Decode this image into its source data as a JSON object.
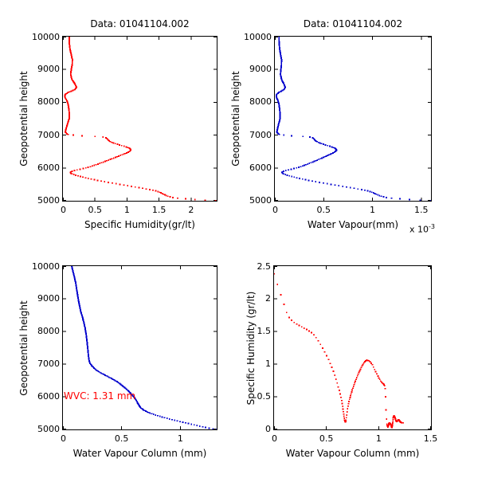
{
  "figure": {
    "background": "#ffffff",
    "axis_color": "#000000",
    "height_param_range": [
      5000,
      10000
    ],
    "height_sample_step_m": 20
  },
  "chart_data": [
    {
      "type": "scatter",
      "position": "top-left",
      "title": "Data: 01041104.002",
      "xlabel": "Specific Humidity(gr/lt)",
      "ylabel": "Geopotential height",
      "xlim": [
        0,
        2.4
      ],
      "ylim": [
        5000,
        10000
      ],
      "xticks": [
        {
          "v": 0,
          "l": "0"
        },
        {
          "v": 0.5,
          "l": "0.5"
        },
        {
          "v": 1,
          "l": "1"
        },
        {
          "v": 1.5,
          "l": "1.5"
        },
        {
          "v": 2,
          "l": "2"
        }
      ],
      "yticks": [
        {
          "v": 5000,
          "l": "5000"
        },
        {
          "v": 6000,
          "l": "6000"
        },
        {
          "v": 7000,
          "l": "7000"
        },
        {
          "v": 8000,
          "l": "8000"
        },
        {
          "v": 9000,
          "l": "9000"
        },
        {
          "v": 10000,
          "l": "10000"
        }
      ],
      "color": "#ff0000",
      "series": "sh",
      "points_height_value": [
        [
          10000,
          0.1
        ],
        [
          9800,
          0.1
        ],
        [
          9600,
          0.112
        ],
        [
          9450,
          0.13
        ],
        [
          9300,
          0.148
        ],
        [
          9150,
          0.145
        ],
        [
          9000,
          0.13
        ],
        [
          8850,
          0.12
        ],
        [
          8700,
          0.14
        ],
        [
          8550,
          0.19
        ],
        [
          8450,
          0.213
        ],
        [
          8380,
          0.18
        ],
        [
          8300,
          0.08
        ],
        [
          8230,
          0.03
        ],
        [
          8150,
          0.032
        ],
        [
          8060,
          0.06
        ],
        [
          7950,
          0.08
        ],
        [
          7800,
          0.092
        ],
        [
          7650,
          0.1
        ],
        [
          7500,
          0.098
        ],
        [
          7350,
          0.072
        ],
        [
          7200,
          0.05
        ],
        [
          7100,
          0.038
        ],
        [
          7050,
          0.055
        ],
        [
          7010,
          0.09
        ],
        [
          6980,
          0.3
        ],
        [
          6950,
          0.6
        ],
        [
          6920,
          0.672
        ],
        [
          6870,
          0.7
        ],
        [
          6810,
          0.73
        ],
        [
          6750,
          0.8
        ],
        [
          6690,
          0.9
        ],
        [
          6640,
          0.99
        ],
        [
          6590,
          1.05
        ],
        [
          6540,
          1.06
        ],
        [
          6490,
          1.03
        ],
        [
          6430,
          0.96
        ],
        [
          6370,
          0.885
        ],
        [
          6290,
          0.78
        ],
        [
          6210,
          0.672
        ],
        [
          6130,
          0.56
        ],
        [
          6050,
          0.445
        ],
        [
          5990,
          0.34
        ],
        [
          5945,
          0.23
        ],
        [
          5905,
          0.15
        ],
        [
          5870,
          0.11
        ],
        [
          5830,
          0.13
        ],
        [
          5780,
          0.2
        ],
        [
          5730,
          0.29
        ],
        [
          5680,
          0.395
        ],
        [
          5630,
          0.515
        ],
        [
          5580,
          0.65
        ],
        [
          5530,
          0.8
        ],
        [
          5480,
          0.95
        ],
        [
          5430,
          1.1
        ],
        [
          5380,
          1.245
        ],
        [
          5330,
          1.385
        ],
        [
          5290,
          1.47
        ],
        [
          5250,
          1.52
        ],
        [
          5210,
          1.56
        ],
        [
          5170,
          1.6
        ],
        [
          5130,
          1.65
        ],
        [
          5100,
          1.715
        ],
        [
          5080,
          1.79
        ],
        [
          5060,
          1.915
        ],
        [
          5040,
          2.06
        ],
        [
          5020,
          2.22
        ],
        [
          5000,
          2.38
        ]
      ]
    },
    {
      "type": "scatter",
      "position": "top-right",
      "title": "Data: 01041104.002",
      "xlabel": "Water Vapour(mm)",
      "ylabel": "Geopotential height",
      "exponent": {
        "base": "x 10",
        "sup": "-3"
      },
      "xlim": [
        0,
        0.0016
      ],
      "ylim": [
        5000,
        10000
      ],
      "xticks": [
        {
          "v": 0,
          "l": "0"
        },
        {
          "v": 0.0005,
          "l": "0.5"
        },
        {
          "v": 0.001,
          "l": "1"
        },
        {
          "v": 0.0015,
          "l": "1.5"
        }
      ],
      "yticks": [
        {
          "v": 5000,
          "l": "5000"
        },
        {
          "v": 6000,
          "l": "6000"
        },
        {
          "v": 7000,
          "l": "7000"
        },
        {
          "v": 8000,
          "l": "8000"
        },
        {
          "v": 9000,
          "l": "9000"
        },
        {
          "v": 10000,
          "l": "10000"
        }
      ],
      "color": "#0000cc",
      "series": "wv",
      "derived_from": "specific humidity profile scaled by height-dependent factor",
      "height_scale_factors": [
        [
          10000,
          0.00043
        ],
        [
          8000,
          0.00052
        ],
        [
          6500,
          0.000598
        ],
        [
          5000,
          0.000672
        ]
      ]
    },
    {
      "type": "scatter",
      "position": "bottom-left",
      "title": "",
      "xlabel": "Water Vapour Column (mm)",
      "ylabel": "Geopotential height",
      "annotation": {
        "text": "WVC: 1.31 mm",
        "color": "#ff0000"
      },
      "xlim": [
        0,
        1.31
      ],
      "ylim": [
        5000,
        10000
      ],
      "xticks": [
        {
          "v": 0,
          "l": "0"
        },
        {
          "v": 0.5,
          "l": "0.5"
        },
        {
          "v": 1,
          "l": "1"
        }
      ],
      "yticks": [
        {
          "v": 5000,
          "l": "5000"
        },
        {
          "v": 6000,
          "l": "6000"
        },
        {
          "v": 7000,
          "l": "7000"
        },
        {
          "v": 8000,
          "l": "8000"
        },
        {
          "v": 9000,
          "l": "9000"
        },
        {
          "v": 10000,
          "l": "10000"
        }
      ],
      "color": "#0000cc",
      "series": "wvc",
      "points_height_value": [
        [
          10000,
          0.075
        ],
        [
          9500,
          0.108
        ],
        [
          9000,
          0.13
        ],
        [
          8600,
          0.152
        ],
        [
          8450,
          0.165
        ],
        [
          8300,
          0.177
        ],
        [
          8100,
          0.189
        ],
        [
          7900,
          0.198
        ],
        [
          7600,
          0.208
        ],
        [
          7300,
          0.216
        ],
        [
          7100,
          0.223
        ],
        [
          7020,
          0.231
        ],
        [
          6950,
          0.246
        ],
        [
          6850,
          0.272
        ],
        [
          6750,
          0.312
        ],
        [
          6650,
          0.365
        ],
        [
          6550,
          0.42
        ],
        [
          6450,
          0.466
        ],
        [
          6350,
          0.503
        ],
        [
          6250,
          0.536
        ],
        [
          6150,
          0.566
        ],
        [
          6050,
          0.591
        ],
        [
          5950,
          0.614
        ],
        [
          5850,
          0.631
        ],
        [
          5750,
          0.646
        ],
        [
          5700,
          0.654
        ],
        [
          5650,
          0.666
        ],
        [
          5600,
          0.686
        ],
        [
          5550,
          0.712
        ],
        [
          5500,
          0.742
        ],
        [
          5450,
          0.78
        ],
        [
          5400,
          0.826
        ],
        [
          5350,
          0.876
        ],
        [
          5300,
          0.93
        ],
        [
          5250,
          0.986
        ],
        [
          5200,
          1.046
        ],
        [
          5150,
          1.106
        ],
        [
          5100,
          1.166
        ],
        [
          5060,
          1.215
        ],
        [
          5030,
          1.262
        ],
        [
          5000,
          1.31
        ]
      ]
    },
    {
      "type": "scatter",
      "position": "bottom-right",
      "title": "",
      "xlabel": "Water Vapour Column (mm)",
      "ylabel": "Specific Humidity (gr/lt)",
      "xlim": [
        0,
        1.5
      ],
      "ylim": [
        0,
        2.5
      ],
      "xticks": [
        {
          "v": 0,
          "l": "0"
        },
        {
          "v": 0.5,
          "l": "0.5"
        },
        {
          "v": 1,
          "l": "1"
        },
        {
          "v": 1.5,
          "l": "1.5"
        }
      ],
      "yticks": [
        {
          "v": 0,
          "l": "0"
        },
        {
          "v": 0.5,
          "l": "0.5"
        },
        {
          "v": 1,
          "l": "1"
        },
        {
          "v": 1.5,
          "l": "1.5"
        },
        {
          "v": 2,
          "l": "2"
        },
        {
          "v": 2.5,
          "l": "2.5"
        }
      ],
      "color": "#ff0000",
      "series": "sh_vs_wvc",
      "derived_from": "x = total WVC minus WVC(height), y = specific humidity(height)",
      "total_wvc_mm": 1.31
    }
  ]
}
